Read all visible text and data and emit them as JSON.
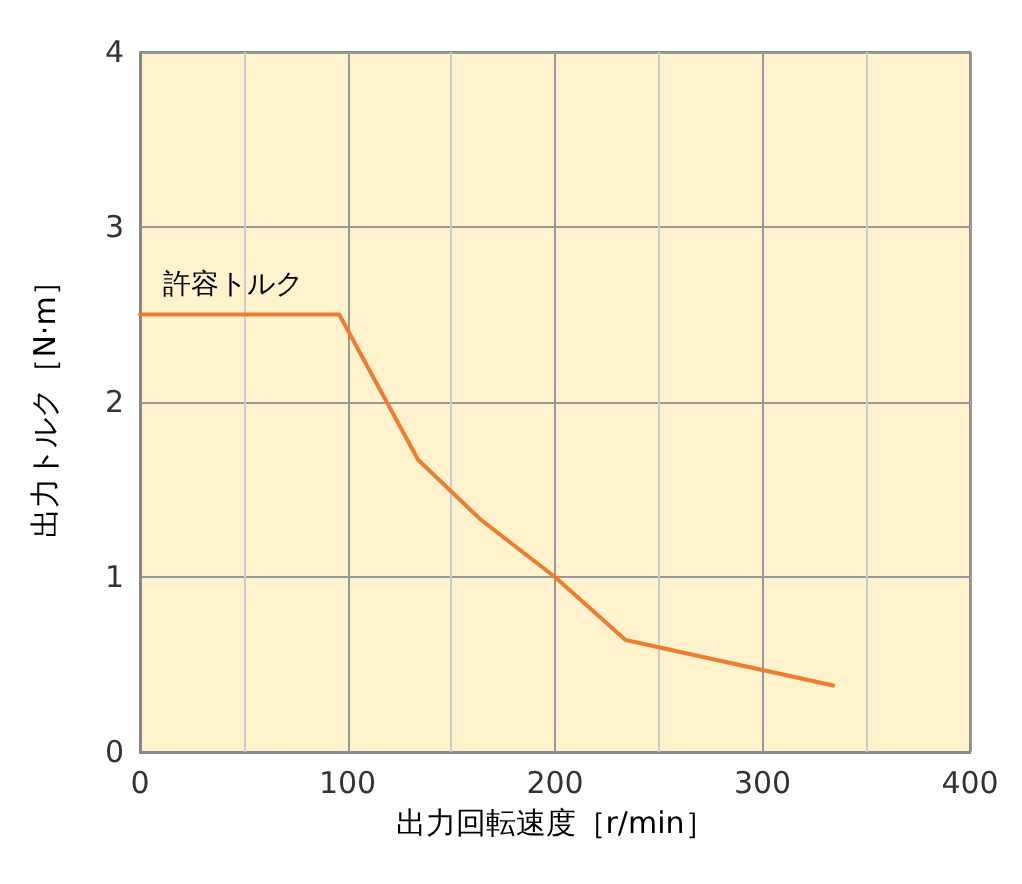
{
  "chart_data": {
    "type": "line",
    "xlabel": "出力回転速度［r/min］",
    "ylabel": "出力トルク［N·m］",
    "x": [
      0,
      96,
      134,
      164,
      200,
      234,
      334
    ],
    "series": [
      {
        "color": "#ed7d31",
        "values": [
          2.5,
          2.5,
          1.67,
          1.33,
          1.0,
          0.64,
          0.38
        ]
      }
    ],
    "xlim": [
      0,
      400
    ],
    "ylim": [
      0,
      4
    ],
    "xticks": [
      0,
      100,
      200,
      300,
      400
    ],
    "yticks": [
      0,
      1,
      2,
      3,
      4
    ],
    "grid": true,
    "marker": "none",
    "line_style": "solid",
    "annotations": [
      {
        "text": "許容トルク",
        "x": 45,
        "y": 2.5
      }
    ]
  }
}
